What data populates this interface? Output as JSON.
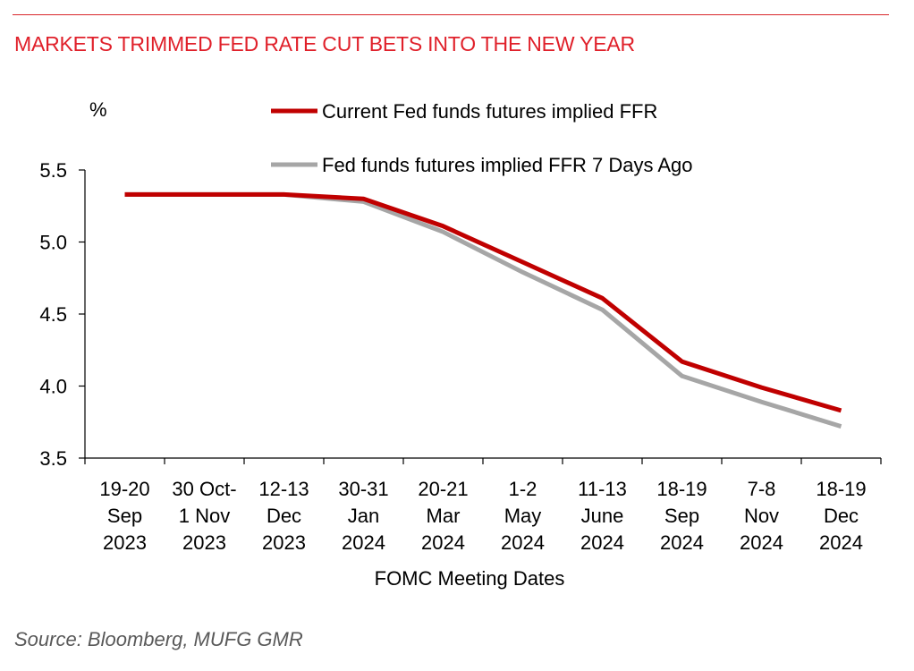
{
  "title": "MARKETS TRIMMED FED RATE CUT BETS INTO THE NEW YEAR",
  "source": "Source: Bloomberg, MUFG GMR",
  "colors": {
    "title": "#e0202a",
    "current": "#c00000",
    "week_ago": "#a6a6a6"
  },
  "chart_data": {
    "type": "line",
    "ylabel": "%",
    "xlabel": "FOMC Meeting Dates",
    "ylim": [
      3.5,
      5.5
    ],
    "yticks": [
      "3.5",
      "4.0",
      "4.5",
      "5.0",
      "5.5"
    ],
    "legend_position": "top",
    "grid": false,
    "categories": [
      [
        "19-20",
        "Sep",
        "2023"
      ],
      [
        "30 Oct-",
        "1 Nov",
        "2023"
      ],
      [
        "12-13",
        "Dec",
        "2023"
      ],
      [
        "30-31",
        "Jan",
        "2024"
      ],
      [
        "20-21",
        "Mar",
        "2024"
      ],
      [
        "1-2",
        "May",
        "2024"
      ],
      [
        "11-13",
        "June",
        "2024"
      ],
      [
        "18-19",
        "Sep",
        "2024"
      ],
      [
        "7-8",
        "Nov",
        "2024"
      ],
      [
        "18-19",
        "Dec",
        "2024"
      ]
    ],
    "series": [
      {
        "name": "Current Fed funds futures implied FFR",
        "color": "#c00000",
        "values": [
          5.33,
          5.33,
          5.33,
          5.3,
          5.11,
          4.86,
          4.61,
          4.17,
          3.99,
          3.83
        ]
      },
      {
        "name": "Fed funds futures implied FFR 7 Days Ago",
        "color": "#a6a6a6",
        "values": [
          5.33,
          5.33,
          5.33,
          5.28,
          5.07,
          4.79,
          4.53,
          4.07,
          3.89,
          3.72
        ]
      }
    ]
  }
}
